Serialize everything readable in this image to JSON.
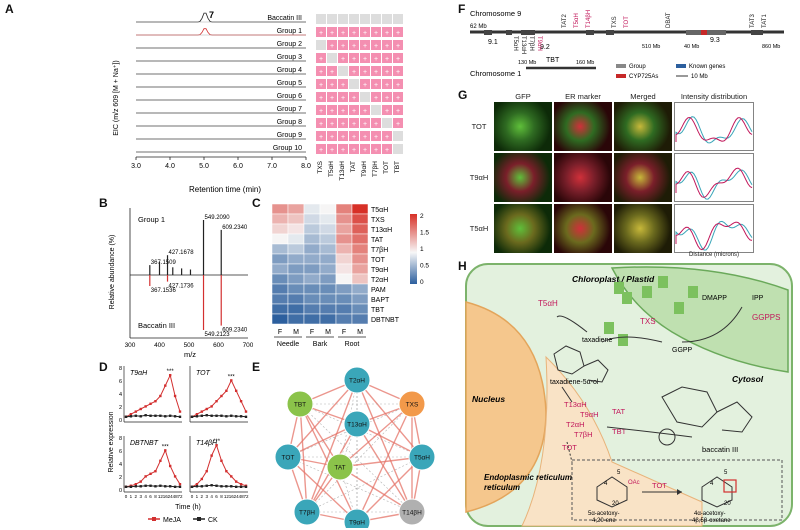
{
  "panels": {
    "A": "A",
    "B": "B",
    "C": "C",
    "D": "D",
    "E": "E",
    "F": "F",
    "G": "G",
    "H": "H"
  },
  "panel_a": {
    "rows": [
      "Baccatin III",
      "Group 1",
      "Group 2",
      "Group 3",
      "Group 4",
      "Group 5",
      "Group 6",
      "Group 7",
      "Group 8",
      "Group 9",
      "Group 10"
    ],
    "peak_label": "7",
    "ylabel": "EIC (m/z 609 [M + Na⁺])",
    "xlabel": "Retention time (min)",
    "xticks": [
      "3.0",
      "4.0",
      "5.0",
      "6.0",
      "7.0",
      "8.0"
    ],
    "genes": [
      "TXS",
      "T5αH",
      "T13αH",
      "TAT",
      "T9αH",
      "T7βH",
      "TOT",
      "TBT"
    ],
    "plus": "+",
    "grid": [
      [
        0,
        0,
        0,
        0,
        0,
        0,
        0,
        0
      ],
      [
        1,
        1,
        1,
        1,
        1,
        1,
        1,
        1
      ],
      [
        0,
        1,
        1,
        1,
        1,
        1,
        1,
        1
      ],
      [
        1,
        0,
        1,
        1,
        1,
        1,
        1,
        1
      ],
      [
        1,
        1,
        0,
        1,
        1,
        1,
        1,
        1
      ],
      [
        1,
        1,
        1,
        0,
        1,
        1,
        1,
        1
      ],
      [
        1,
        1,
        1,
        1,
        0,
        1,
        1,
        1
      ],
      [
        1,
        1,
        1,
        1,
        1,
        0,
        1,
        1
      ],
      [
        1,
        1,
        1,
        1,
        1,
        1,
        0,
        1
      ],
      [
        1,
        1,
        1,
        1,
        1,
        1,
        1,
        0
      ],
      [
        1,
        1,
        1,
        1,
        1,
        1,
        1,
        0
      ]
    ]
  },
  "panel_b": {
    "top_label": "Group 1",
    "bottom_label": "Baccatin III",
    "ylabel": "Relative abundance (%)",
    "xlabel": "m/z",
    "xticks": [
      "300",
      "400",
      "500",
      "600",
      "700"
    ],
    "top_peaks": [
      {
        "mz": 367.1509,
        "h": 0.18,
        "label": "367.1509"
      },
      {
        "mz": 427.1678,
        "h": 0.36,
        "label": "427.1678"
      },
      {
        "mz": 549.209,
        "h": 1.0,
        "label": "549.2090"
      },
      {
        "mz": 609.234,
        "h": 0.82,
        "label": "609.2340"
      },
      {
        "mz": 400,
        "h": 0.24,
        "label": ""
      },
      {
        "mz": 445,
        "h": 0.14,
        "label": ""
      },
      {
        "mz": 475,
        "h": 0.12,
        "label": ""
      },
      {
        "mz": 505,
        "h": 0.1,
        "label": ""
      }
    ],
    "bottom_peaks": [
      {
        "mz": 367.1536,
        "h": 0.2,
        "label": "367.1536"
      },
      {
        "mz": 427.1736,
        "h": 0.12,
        "label": "427.1736"
      },
      {
        "mz": 549.2123,
        "h": 1.0,
        "label": "549.2123"
      },
      {
        "mz": 609.234,
        "h": 0.92,
        "label": "609.2340"
      }
    ]
  },
  "panel_c": {
    "genes": [
      "T5αH",
      "TXS",
      "T13αH",
      "TAT",
      "T7βH",
      "TOT",
      "T9αH",
      "T2αH",
      "PAM",
      "BAPT",
      "TBT",
      "DBTNBT"
    ],
    "cols": [
      "F",
      "M",
      "F",
      "M",
      "F",
      "M"
    ],
    "tissues": [
      "Needle",
      "Bark",
      "Root"
    ],
    "legend_ticks": [
      "2",
      "1.5",
      "1",
      "0.5",
      "0"
    ],
    "values": [
      [
        1.6,
        1.5,
        0.9,
        1.0,
        1.7,
        2.2
      ],
      [
        1.4,
        1.3,
        0.8,
        0.9,
        1.6,
        2.0
      ],
      [
        1.2,
        1.1,
        0.7,
        0.8,
        1.5,
        1.9
      ],
      [
        1.0,
        0.9,
        0.6,
        0.7,
        1.6,
        1.8
      ],
      [
        0.6,
        0.7,
        0.5,
        0.6,
        1.4,
        1.7
      ],
      [
        0.4,
        0.5,
        0.5,
        0.5,
        1.2,
        1.6
      ],
      [
        0.5,
        0.4,
        0.4,
        0.5,
        1.1,
        1.5
      ],
      [
        0.3,
        0.4,
        0.5,
        0.4,
        1.0,
        1.3
      ],
      [
        0.2,
        0.3,
        0.3,
        0.3,
        0.4,
        0.5
      ],
      [
        0.2,
        0.2,
        0.3,
        0.3,
        0.3,
        0.4
      ],
      [
        0.1,
        0.1,
        0.2,
        0.2,
        0.2,
        0.3
      ],
      [
        0.0,
        0.1,
        0.1,
        0.1,
        0.2,
        0.2
      ]
    ]
  },
  "chart_data": [
    {
      "type": "line",
      "title": "T9αH",
      "x": [
        0,
        1,
        2,
        3,
        4,
        6,
        8,
        12,
        16,
        24,
        48,
        72
      ],
      "series": [
        {
          "name": "MeJA",
          "values": [
            1,
            1.5,
            2,
            2.5,
            3,
            3.5,
            4,
            5,
            7,
            9,
            5,
            2
          ]
        },
        {
          "name": "CK",
          "values": [
            1,
            1.1,
            1.2,
            1.1,
            1.3,
            1.2,
            1.2,
            1.2,
            1.1,
            1.2,
            1.1,
            1
          ]
        }
      ],
      "ylim": [
        0,
        10
      ]
    },
    {
      "type": "line",
      "title": "TOT",
      "x": [
        0,
        1,
        2,
        3,
        4,
        6,
        8,
        12,
        16,
        24,
        48,
        72
      ],
      "series": [
        {
          "name": "MeJA",
          "values": [
            1,
            1.5,
            2,
            2.5,
            3,
            4,
            5,
            6,
            8,
            6,
            4,
            2
          ]
        },
        {
          "name": "CK",
          "values": [
            1,
            1.1,
            1.2,
            1.3,
            1.2,
            1.2,
            1.2,
            1.1,
            1.2,
            1.1,
            1.1,
            1
          ]
        }
      ],
      "ylim": [
        0,
        10
      ]
    },
    {
      "type": "line",
      "title": "DBTNBT",
      "x": [
        0,
        1,
        2,
        3,
        4,
        6,
        8,
        12,
        16,
        24,
        48,
        72
      ],
      "series": [
        {
          "name": "MeJA",
          "values": [
            1,
            1.2,
            1.5,
            2,
            3,
            3.5,
            4,
            6,
            8,
            5,
            3,
            1.5
          ]
        },
        {
          "name": "CK",
          "values": [
            1,
            1,
            1.1,
            1.1,
            1.2,
            1.2,
            1.1,
            1.2,
            1.1,
            1.1,
            1,
            1
          ]
        }
      ],
      "ylim": [
        0,
        10
      ]
    },
    {
      "type": "line",
      "title": "T14βH",
      "x": [
        0,
        1,
        2,
        3,
        4,
        6,
        8,
        12,
        16,
        24,
        48,
        72
      ],
      "series": [
        {
          "name": "MeJA",
          "values": [
            1,
            1.5,
            2.5,
            4,
            7,
            9,
            6,
            4,
            3,
            2,
            1.5,
            1.2
          ]
        },
        {
          "name": "CK",
          "values": [
            1,
            1.1,
            1.1,
            1.2,
            1.3,
            1.2,
            1.1,
            1.1,
            1.1,
            1,
            1,
            1
          ]
        }
      ],
      "ylim": [
        0,
        10
      ]
    }
  ],
  "panel_d": {
    "ylabel": "Relative expression",
    "xlabel": "Time (h)",
    "xticks": [
      "0",
      "1",
      "2",
      "3",
      "4",
      "6",
      "8",
      "12",
      "16",
      "24",
      "48",
      "72"
    ],
    "yticks": [
      "8",
      "6",
      "4",
      "2",
      "0"
    ],
    "legend_meja": "MeJA",
    "legend_ck": "CK",
    "stars": [
      "***",
      "**",
      "*"
    ]
  },
  "panel_e": {
    "nodes": [
      "T2αH",
      "TBT",
      "TXS",
      "T13αH",
      "TOT",
      "T5αH",
      "TAT",
      "T7βH",
      "T14βH",
      "T9αH"
    ]
  },
  "panel_f": {
    "chr9": "Chromosome 9",
    "chr1": "Chromosome 1",
    "mb62": "62 Mb",
    "mb510": "510 Mb",
    "mb860": "860 Mb",
    "mb40": "40 Mb",
    "labels_top": [
      "TAT2",
      "T5αH",
      "T14βH",
      "TXS",
      "TOT",
      "DBAT",
      "TAT3",
      "TAT1"
    ],
    "labels_bot": [
      "T5αH",
      "T13αH",
      "T7βH",
      "T9αH"
    ],
    "n91": "9.1",
    "n92": "9.2",
    "n93": "9.3",
    "tbt": "TBT",
    "mb130": "130 Mb",
    "mb160": "160 Mb",
    "legend": [
      "Group",
      "Known genes",
      "CYP725As",
      "10 Mb"
    ]
  },
  "panel_g": {
    "cols": [
      "GFP",
      "ER marker",
      "Merged",
      "Intensity distribution"
    ],
    "rows": [
      "TOT",
      "T9αH",
      "T5αH"
    ],
    "xlabel": "Distance (microns)"
  },
  "panel_h": {
    "chloroplast": "Chloroplast / Plastid",
    "cytosol": "Cytosol",
    "nucleus": "Nucleus",
    "er": "Endoplasmic reticulum",
    "dmapp": "DMAPP",
    "ipp": "IPP",
    "ggpps": "GGPPS",
    "ggpp": "GGPP",
    "txs": "TXS",
    "taxadiene": "taxadiene",
    "t5ah": "T5αH",
    "taxadienol": "taxadiene-5α-ol",
    "t13ah": "T13αH",
    "t9ah": "T9αH",
    "t2ah": "T2αH",
    "t7bh": "T7βH",
    "tat": "TAT",
    "tbt": "TBT",
    "tot": "TOT",
    "baccatin": "baccatin III",
    "sub1": "5α-acetoxy-",
    "sub1b": "4,20-ene",
    "sub2": "4α-acetoxy-",
    "sub2b": "4β,5β-oxetane",
    "oac": "OAc",
    "n4": "4",
    "n5": "5",
    "n20": "20"
  },
  "colors": {
    "pink": "#f48fb1",
    "red": "#d32f2f",
    "blue": "#2c5f9e",
    "teal": "#3aa6b9",
    "green": "#8bc34a",
    "orange": "#f2994a",
    "gray": "#b0b0b0",
    "magenta": "#c2185b"
  }
}
